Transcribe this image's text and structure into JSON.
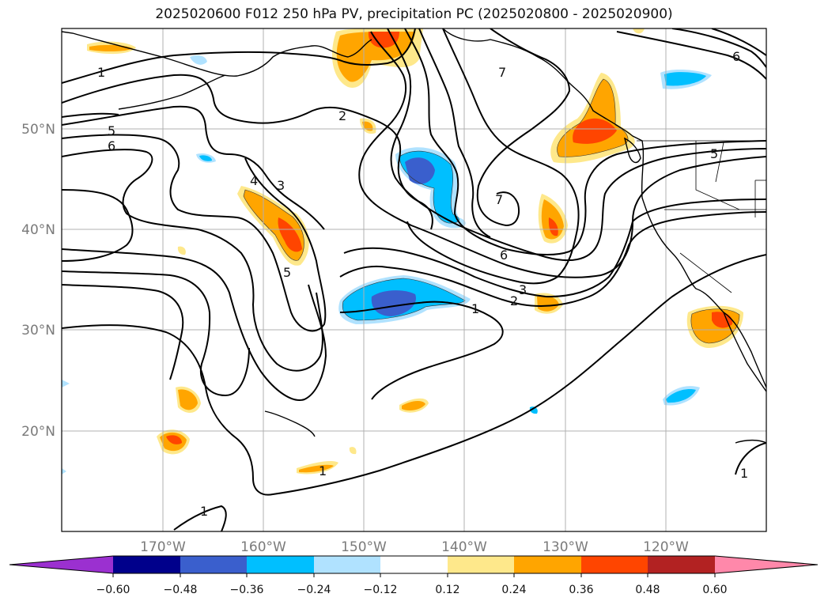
{
  "title": "2025020600 F012 250 hPa PV, precipitation PC (2025020800 - 2025020900)",
  "map": {
    "lat_labels": [
      "50°N",
      "40°N",
      "30°N",
      "20°N"
    ],
    "lon_labels": [
      "170°W",
      "160°W",
      "150°W",
      "140°W",
      "130°W",
      "120°W"
    ],
    "gridlines": true,
    "coastlines": true
  },
  "pv_contour_labels": [
    "1",
    "5",
    "6",
    "2",
    "4",
    "3",
    "5",
    "7",
    "6",
    "3",
    "2",
    "1",
    "7",
    "6",
    "5",
    "1",
    "1",
    "1"
  ],
  "colorbar": {
    "ticks": [
      "−0.60",
      "−0.48",
      "−0.36",
      "−0.24",
      "−0.12",
      "0.12",
      "0.24",
      "0.36",
      "0.48",
      "0.60"
    ],
    "colors": [
      "#9b30d0",
      "#00008b",
      "#3a5fcd",
      "#00bfff",
      "#b0e2ff",
      "#ffffff",
      "#fee88b",
      "#ffa500",
      "#ff4500",
      "#b22222",
      "#ff88aa"
    ],
    "extend": "both"
  }
}
